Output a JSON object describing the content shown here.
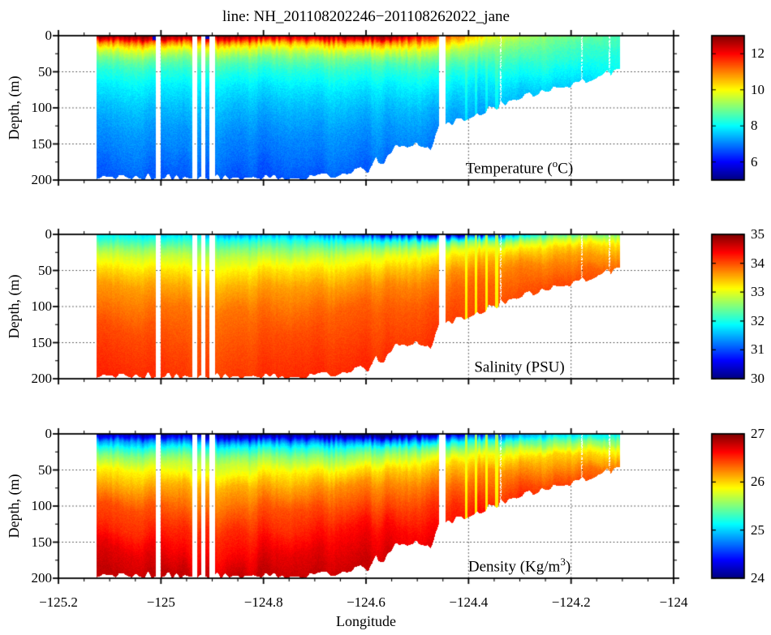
{
  "title": "line: NH_201108202246−201108262022_jane",
  "chart_data": {
    "type": "heatmap",
    "title": "line: NH_201108202246−201108262022_jane",
    "xlabel": "Longitude",
    "ylabel": "Depth, (m)",
    "x_range": [
      -125.2,
      -124
    ],
    "x_tick_values": [
      -125.2,
      -125,
      -124.8,
      -124.6,
      -124.4,
      -124.2,
      -124
    ],
    "x_tick_labels": [
      "−125.2",
      "−125",
      "−124.8",
      "−124.6",
      "−124.4",
      "−124.2",
      "−124"
    ],
    "x_minor_step": 0.05,
    "depth_range": [
      0,
      200
    ],
    "depth_tick_values": [
      0,
      50,
      100,
      150,
      200
    ],
    "depth_tick_labels": [
      "0",
      "50",
      "100",
      "150",
      "200"
    ],
    "depth_minor_step": 25,
    "grid": "dotted",
    "colormap": "jet",
    "data_extent": [
      -125.125,
      -124.105
    ],
    "gaps": [
      [
        -125.01,
        -125.0
      ],
      [
        -124.938,
        -124.93
      ],
      [
        -124.922,
        -124.914
      ],
      [
        -124.906,
        -124.895
      ],
      [
        -124.458,
        -124.445
      ]
    ],
    "sparse_columns": [
      -124.337,
      -124.179,
      -124.125
    ],
    "artifact_streaks": [
      -124.405,
      -124.385,
      -124.365,
      -124.345
    ],
    "bathymetry": {
      "lon": [
        -125.125,
        -124.7,
        -124.66,
        -124.625,
        -124.61,
        -124.595,
        -124.58,
        -124.565,
        -124.55,
        -124.53,
        -124.51,
        -124.49,
        -124.475,
        -124.458,
        -124.44,
        -124.42,
        -124.4,
        -124.38,
        -124.35,
        -124.32,
        -124.29,
        -124.26,
        -124.23,
        -124.2,
        -124.17,
        -124.14,
        -124.12,
        -124.105
      ],
      "depth": [
        196,
        196,
        193,
        188,
        183,
        186,
        172,
        174,
        158,
        152,
        149,
        151,
        158,
        127,
        122,
        118,
        112,
        108,
        100,
        92,
        85,
        79,
        73,
        67,
        61,
        55,
        50,
        48
      ]
    },
    "grid_longitudes": [
      -125.12,
      -125.05,
      -124.95,
      -124.85,
      -124.75,
      -124.65,
      -124.55,
      -124.45,
      -124.4,
      -124.35,
      -124.3,
      -124.25,
      -124.2,
      -124.15,
      -124.11
    ],
    "grid_depths": [
      0,
      5,
      10,
      15,
      20,
      30,
      40,
      50,
      70,
      100,
      130,
      160,
      195
    ],
    "panels": [
      {
        "name": "temperature",
        "annotation": {
          "pre": "Temperature (",
          "sup": "o",
          "post": "C)"
        },
        "colorbar": {
          "min": 5,
          "max": 13,
          "tick_values": [
            12,
            10,
            8,
            6
          ],
          "tick_labels": [
            "12",
            "10",
            "8",
            "6"
          ]
        },
        "speckle": 0.3,
        "streak_value": 9.3,
        "streak_strength": 0.25,
        "surface_cold_spots": [
          -125.012,
          -124.909
        ],
        "values": [
          [
            12.8,
            12.9,
            12.8,
            12.7,
            12.6,
            12.8,
            12.9,
            11.4,
            10.8,
            9.9,
            9.5,
            9.2,
            9.0,
            8.8,
            8.6
          ],
          [
            12.1,
            12.3,
            12.2,
            11.9,
            11.7,
            12.0,
            12.2,
            10.9,
            10.4,
            9.6,
            9.3,
            9.0,
            8.8,
            8.7,
            8.5
          ],
          [
            10.9,
            11.1,
            11.0,
            10.7,
            10.5,
            10.8,
            11.0,
            10.3,
            10.0,
            9.4,
            9.1,
            8.9,
            8.7,
            8.6,
            8.5
          ],
          [
            10.2,
            10.3,
            10.2,
            10.0,
            9.9,
            10.1,
            10.3,
            9.9,
            9.6,
            9.2,
            9.0,
            8.8,
            8.6,
            8.5,
            8.4
          ],
          [
            9.7,
            9.8,
            9.7,
            9.6,
            9.5,
            9.7,
            9.8,
            9.5,
            9.3,
            9.0,
            8.8,
            8.7,
            8.5,
            8.4,
            8.3
          ],
          [
            9.0,
            9.1,
            9.0,
            8.9,
            8.9,
            9.0,
            9.1,
            9.0,
            8.9,
            8.7,
            8.6,
            8.5,
            8.4,
            8.3,
            8.2
          ],
          [
            8.6,
            8.6,
            8.6,
            8.5,
            8.5,
            8.6,
            8.6,
            8.6,
            8.5,
            8.4,
            8.3,
            8.3,
            8.2,
            8.1,
            8.1
          ],
          [
            8.3,
            8.3,
            8.3,
            8.2,
            8.2,
            8.3,
            8.3,
            8.3,
            8.2,
            8.2,
            8.1,
            8.1,
            8.0,
            8.0,
            8.0
          ],
          [
            7.9,
            7.9,
            7.9,
            7.8,
            7.8,
            7.9,
            7.9,
            7.9,
            7.8,
            7.8,
            7.7,
            7.7,
            7.7,
            7.7,
            7.7
          ],
          [
            7.5,
            7.5,
            7.5,
            7.4,
            7.4,
            7.5,
            7.5,
            7.4,
            7.4,
            7.4,
            7.3,
            7.3,
            7.3,
            7.3,
            7.3
          ],
          [
            7.2,
            7.2,
            7.2,
            7.1,
            7.1,
            7.2,
            7.2,
            7.1,
            7.1,
            7.1,
            7.0,
            7.0,
            7.0,
            7.0,
            7.0
          ],
          [
            7.0,
            7.0,
            7.0,
            6.9,
            6.9,
            7.0,
            7.0,
            6.9,
            6.9,
            6.9,
            6.9,
            6.9,
            6.9,
            6.9,
            6.9
          ],
          [
            6.7,
            6.7,
            6.7,
            6.6,
            6.6,
            6.7,
            6.7,
            6.6,
            6.6,
            6.6,
            6.6,
            6.6,
            6.6,
            6.6,
            6.6
          ]
        ]
      },
      {
        "name": "salinity",
        "annotation": {
          "pre": "Salinity (PSU)",
          "sup": "",
          "post": ""
        },
        "colorbar": {
          "min": 30,
          "max": 35,
          "tick_values": [
            35,
            34,
            33,
            32,
            31,
            30
          ],
          "tick_labels": [
            "35",
            "34",
            "33",
            "32",
            "31",
            "30"
          ]
        },
        "speckle": 0.12,
        "streak_value": 33.0,
        "streak_strength": 0.8,
        "surface_cold_spots": [],
        "values": [
          [
            31.9,
            31.8,
            31.6,
            31.3,
            31.4,
            31.1,
            30.5,
            30.3,
            30.3,
            30.7,
            31.6,
            32.1,
            32.3,
            32.5,
            32.5
          ],
          [
            32.0,
            32.0,
            31.9,
            31.8,
            31.8,
            31.7,
            31.4,
            31.3,
            31.4,
            31.7,
            32.2,
            32.5,
            32.7,
            32.8,
            32.8
          ],
          [
            32.2,
            32.2,
            32.1,
            32.1,
            32.1,
            32.0,
            32.0,
            32.2,
            32.3,
            32.4,
            32.7,
            32.9,
            33.0,
            33.1,
            33.1
          ],
          [
            32.4,
            32.4,
            32.3,
            32.3,
            32.3,
            32.3,
            32.3,
            32.6,
            32.7,
            32.8,
            33.0,
            33.1,
            33.2,
            33.3,
            33.3
          ],
          [
            32.6,
            32.6,
            32.5,
            32.5,
            32.5,
            32.5,
            32.6,
            32.9,
            33.0,
            33.1,
            33.2,
            33.3,
            33.4,
            33.4,
            33.4
          ],
          [
            32.9,
            32.9,
            32.8,
            32.8,
            32.8,
            32.9,
            33.0,
            33.2,
            33.3,
            33.4,
            33.5,
            33.5,
            33.6,
            33.6,
            33.6
          ],
          [
            33.1,
            33.1,
            33.0,
            33.0,
            33.1,
            33.1,
            33.2,
            33.4,
            33.5,
            33.6,
            33.7,
            33.7,
            33.7,
            33.7,
            33.8
          ],
          [
            33.3,
            33.3,
            33.2,
            33.2,
            33.3,
            33.3,
            33.4,
            33.6,
            33.7,
            33.7,
            33.8,
            33.8,
            33.8,
            33.9,
            33.9
          ],
          [
            33.6,
            33.6,
            33.5,
            33.5,
            33.6,
            33.6,
            33.7,
            33.8,
            33.9,
            33.9,
            33.9,
            34.0,
            34.0,
            34.0,
            34.0
          ],
          [
            33.8,
            33.8,
            33.8,
            33.8,
            33.8,
            33.9,
            33.9,
            34.0,
            34.0,
            34.0,
            34.1,
            34.1,
            34.1,
            34.1,
            34.1
          ],
          [
            34.0,
            34.0,
            33.9,
            33.9,
            34.0,
            34.0,
            34.0,
            34.1,
            34.1,
            34.1,
            34.2,
            34.2,
            34.2,
            34.2,
            34.2
          ],
          [
            34.1,
            34.1,
            34.0,
            34.0,
            34.1,
            34.1,
            34.1,
            34.2,
            34.2,
            34.2,
            34.2,
            34.2,
            34.2,
            34.2,
            34.2
          ],
          [
            34.2,
            34.2,
            34.1,
            34.1,
            34.2,
            34.2,
            34.2,
            34.3,
            34.3,
            34.3,
            34.3,
            34.3,
            34.3,
            34.3,
            34.3
          ]
        ]
      },
      {
        "name": "density",
        "annotation": {
          "pre": "Density (Kg/m",
          "sup": "3",
          "post": ")"
        },
        "colorbar": {
          "min": 24,
          "max": 27,
          "tick_values": [
            27,
            26,
            25,
            24
          ],
          "tick_labels": [
            "27",
            "26",
            "25",
            "24"
          ]
        },
        "speckle": 0.08,
        "streak_value": 25.8,
        "streak_strength": 0.8,
        "surface_cold_spots": [],
        "values": [
          [
            24.2,
            24.1,
            24.1,
            24.0,
            24.0,
            23.9,
            23.8,
            24.2,
            24.3,
            24.5,
            24.8,
            24.9,
            25.0,
            25.1,
            25.1
          ],
          [
            24.4,
            24.4,
            24.4,
            24.3,
            24.3,
            24.3,
            24.2,
            24.6,
            24.7,
            24.8,
            25.0,
            25.1,
            25.2,
            25.2,
            25.3
          ],
          [
            24.8,
            24.8,
            24.7,
            24.7,
            24.7,
            24.7,
            24.7,
            25.0,
            25.1,
            25.2,
            25.3,
            25.4,
            25.4,
            25.5,
            25.5
          ],
          [
            25.0,
            25.0,
            25.0,
            25.0,
            25.0,
            25.0,
            25.0,
            25.3,
            25.3,
            25.4,
            25.5,
            25.5,
            25.6,
            25.6,
            25.6
          ],
          [
            25.2,
            25.2,
            25.2,
            25.2,
            25.2,
            25.2,
            25.3,
            25.5,
            25.5,
            25.6,
            25.7,
            25.7,
            25.7,
            25.8,
            25.8
          ],
          [
            25.5,
            25.5,
            25.5,
            25.5,
            25.5,
            25.5,
            25.6,
            25.8,
            25.8,
            25.9,
            25.9,
            26.0,
            26.0,
            26.0,
            26.0
          ],
          [
            25.7,
            25.7,
            25.7,
            25.7,
            25.7,
            25.7,
            25.8,
            26.0,
            26.0,
            26.0,
            26.1,
            26.1,
            26.1,
            26.1,
            26.2
          ],
          [
            25.9,
            25.9,
            25.8,
            25.8,
            25.9,
            25.9,
            26.0,
            26.1,
            26.1,
            26.2,
            26.2,
            26.2,
            26.2,
            26.3,
            26.3
          ],
          [
            26.1,
            26.1,
            26.1,
            26.1,
            26.1,
            26.2,
            26.2,
            26.3,
            26.3,
            26.3,
            26.4,
            26.4,
            26.4,
            26.4,
            26.4
          ],
          [
            26.4,
            26.4,
            26.3,
            26.3,
            26.4,
            26.4,
            26.4,
            26.5,
            26.5,
            26.5,
            26.6,
            26.6,
            26.6,
            26.6,
            26.6
          ],
          [
            26.5,
            26.5,
            26.5,
            26.5,
            26.5,
            26.6,
            26.6,
            26.6,
            26.6,
            26.7,
            26.7,
            26.7,
            26.7,
            26.7,
            26.7
          ],
          [
            26.7,
            26.7,
            26.6,
            26.6,
            26.7,
            26.7,
            26.7,
            26.7,
            26.7,
            26.8,
            26.8,
            26.8,
            26.8,
            26.8,
            26.8
          ],
          [
            26.8,
            26.8,
            26.8,
            26.8,
            26.8,
            26.8,
            26.8,
            26.8,
            26.8,
            26.9,
            26.9,
            26.9,
            26.9,
            26.9,
            26.9
          ]
        ]
      }
    ]
  }
}
